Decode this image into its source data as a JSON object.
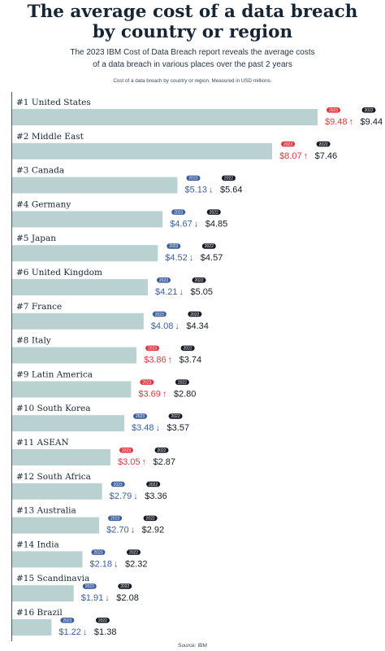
{
  "title_line1": "The average cost of a data breach",
  "title_line2": "by country or region",
  "subtitle_line1": "The 2023 IBM Cost of Data Breach report reveals the average costs",
  "subtitle_line2": "of a data breach in various places over the past 2 years",
  "note": "Cost of a data breach by country or region. Measured in USD millions.",
  "source": "Source: IBM",
  "colors": {
    "bar": "#b9d1d0",
    "increase": "#e2353e",
    "decrease": "#3a5ea0",
    "badge_2022": "#151b24",
    "value_2022": "#151b24"
  },
  "chart_data": {
    "type": "bar",
    "orientation": "horizontal",
    "xlim": [
      0,
      9.48
    ],
    "categories": [
      "#1 United States",
      "#2 Middle East",
      "#3 Canada",
      "#4 Germany",
      "#5 Japan",
      "#6 United Kingdom",
      "#7 France",
      "#8 Italy",
      "#9 Latin America",
      "#10 South Korea",
      "#11 ASEAN",
      "#12 South Africa",
      "#13 Australia",
      "#14 India",
      "#15 Scandinavia",
      "#16 Brazil"
    ],
    "series": [
      {
        "name": "2023",
        "values": [
          9.48,
          8.07,
          5.13,
          4.67,
          4.52,
          4.21,
          4.08,
          3.86,
          3.69,
          3.48,
          3.05,
          2.79,
          2.7,
          2.18,
          1.91,
          1.22
        ],
        "labels": [
          "$9.48",
          "$8.07",
          "$5.13",
          "$4.67",
          "$4.52",
          "$4.21",
          "$4.08",
          "$3.86",
          "$3.69",
          "$3.48",
          "$3.05",
          "$2.79",
          "$2.70",
          "$2.18",
          "$1.91",
          "$1.22"
        ]
      },
      {
        "name": "2022",
        "values": [
          9.44,
          7.46,
          5.64,
          4.85,
          4.57,
          5.05,
          4.34,
          3.74,
          2.8,
          3.57,
          2.87,
          3.36,
          2.92,
          2.32,
          2.08,
          1.38
        ],
        "labels": [
          "$9.44",
          "$7.46",
          "$5.64",
          "$4.85",
          "$4.57",
          "$5.05",
          "$4.34",
          "$3.74",
          "$2.80",
          "$3.57",
          "$2.87",
          "$3.36",
          "$2.92",
          "$2.32",
          "$2.08",
          "$1.38"
        ]
      }
    ],
    "arrow_up": "↑",
    "arrow_down": "↓",
    "grid": false,
    "legend": "none"
  }
}
